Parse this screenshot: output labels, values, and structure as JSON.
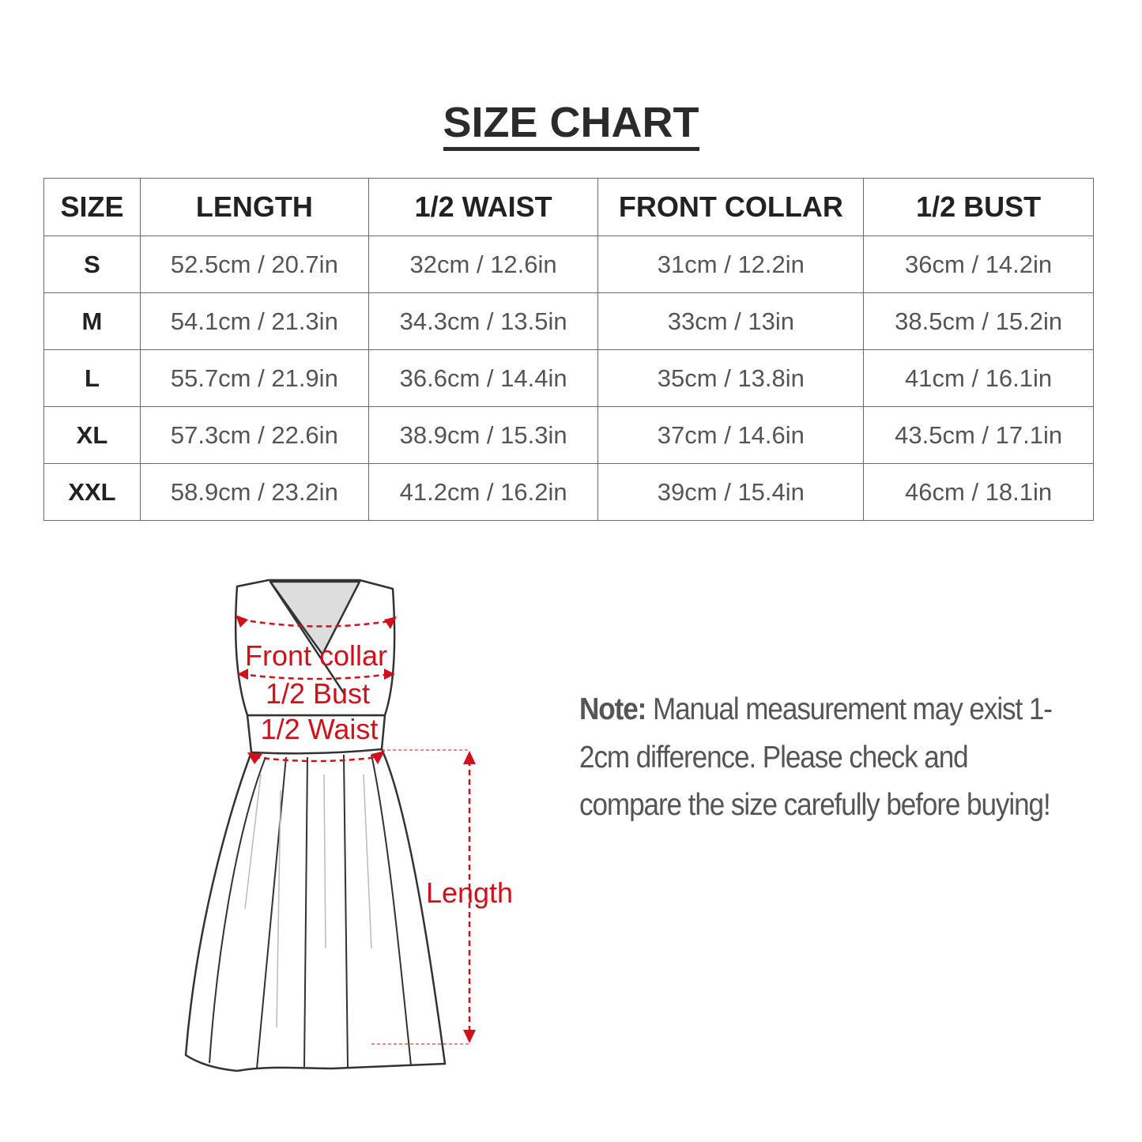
{
  "title": "SIZE CHART",
  "table": {
    "headers": [
      "SIZE",
      "LENGTH",
      "1/2 WAIST",
      "FRONT COLLAR",
      "1/2 BUST"
    ],
    "rows": [
      [
        "S",
        "52.5cm / 20.7in",
        "32cm / 12.6in",
        "31cm / 12.2in",
        "36cm / 14.2in"
      ],
      [
        "M",
        "54.1cm / 21.3in",
        "34.3cm / 13.5in",
        "33cm / 13in",
        "38.5cm / 15.2in"
      ],
      [
        "L",
        "55.7cm / 21.9in",
        "36.6cm / 14.4in",
        "35cm / 13.8in",
        "41cm / 16.1in"
      ],
      [
        "XL",
        "57.3cm / 22.6in",
        "38.9cm / 15.3in",
        "37cm / 14.6in",
        "43.5cm / 17.1in"
      ],
      [
        "XXL",
        "58.9cm / 23.2in",
        "41.2cm / 16.2in",
        "39cm / 15.4in",
        "46cm / 18.1in"
      ]
    ]
  },
  "diagram": {
    "labels": {
      "front_collar": "Front collar",
      "bust": "1/2 Bust",
      "waist": "1/2 Waist",
      "length": "Length"
    },
    "accent_color": "#d0111b"
  },
  "note": {
    "label": "Note:",
    "text": " Manual measurement may exist 1-2cm difference. Please check and compare the size carefully before buying!"
  }
}
